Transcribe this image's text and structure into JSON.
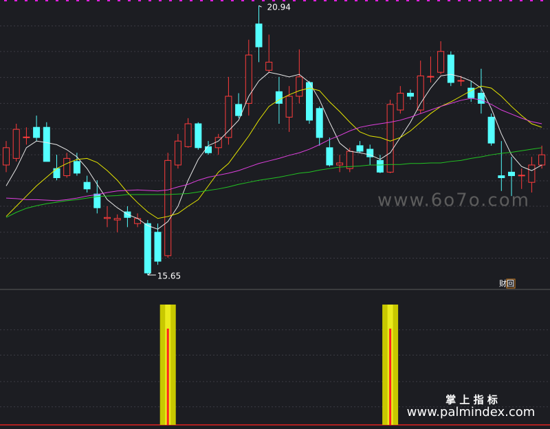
{
  "chart_data": {
    "type": "candlestick",
    "open": [
      17.81,
      17.94,
      18.35,
      18.55,
      18.55,
      17.74,
      17.6,
      17.88,
      17.47,
      17.24,
      16.76,
      16.73,
      16.89,
      16.66,
      16.66,
      16.49,
      16.03,
      17.81,
      18.17,
      18.62,
      18.17,
      18.15,
      18.35,
      19.0,
      19.02,
      20.58,
      19.67,
      19.25,
      18.75,
      19.16,
      19.43,
      18.92,
      18.15,
      17.81,
      17.74,
      18.19,
      18.12,
      17.9,
      17.67,
      18.89,
      19.22,
      18.89,
      19.54,
      19.63,
      19.97,
      19.46,
      19.32,
      19.22,
      18.75,
      17.6,
      17.67,
      17.6,
      17.47,
      17.81
    ],
    "high": [
      18.28,
      18.62,
      18.55,
      18.78,
      18.65,
      18.01,
      18.05,
      18.05,
      17.6,
      17.51,
      17.0,
      16.84,
      17.0,
      16.86,
      16.73,
      16.66,
      18.05,
      18.42,
      18.73,
      18.65,
      18.28,
      18.42,
      19.54,
      19.22,
      20.27,
      20.94,
      20.37,
      19.54,
      19.36,
      20.08,
      19.46,
      18.96,
      18.35,
      18.01,
      18.15,
      18.28,
      18.21,
      18.01,
      19.09,
      19.36,
      19.29,
      19.86,
      19.94,
      20.24,
      20.04,
      19.56,
      19.46,
      19.7,
      18.82,
      18.28,
      17.97,
      17.74,
      17.97,
      18.19
    ],
    "low": [
      17.67,
      17.88,
      18.21,
      18.28,
      17.88,
      17.51,
      17.56,
      17.6,
      17.27,
      16.86,
      16.59,
      16.49,
      16.59,
      16.59,
      15.65,
      15.85,
      15.99,
      17.74,
      18.15,
      18.11,
      18.01,
      18.01,
      18.21,
      18.73,
      18.78,
      19.83,
      19.63,
      18.62,
      18.46,
      19.02,
      18.62,
      18.19,
      17.78,
      17.67,
      17.67,
      18.05,
      17.81,
      17.65,
      17.65,
      18.82,
      19.09,
      18.82,
      19.43,
      19.59,
      19.36,
      19.36,
      19.05,
      18.82,
      18.19,
      17.3,
      17.2,
      17.34,
      17.27,
      17.74
    ],
    "close": [
      18.15,
      18.51,
      18.36,
      18.35,
      17.88,
      17.56,
      17.94,
      17.65,
      17.34,
      16.97,
      16.78,
      16.76,
      16.78,
      16.76,
      15.69,
      15.92,
      17.9,
      18.28,
      18.62,
      18.15,
      18.05,
      18.35,
      19.16,
      18.78,
      19.97,
      20.13,
      19.83,
      19.02,
      19.16,
      19.54,
      18.69,
      18.35,
      17.81,
      17.85,
      18.08,
      18.08,
      17.97,
      17.67,
      19.0,
      19.22,
      19.16,
      19.56,
      19.55,
      20.04,
      19.43,
      19.47,
      19.13,
      19.02,
      18.24,
      17.56,
      17.6,
      17.61,
      17.81,
      18.01
    ],
    "up_color": "#ff3c3c",
    "down_color": "#54ffff",
    "lines": [
      {
        "color": "#e8e8e8",
        "values": [
          17.4,
          17.74,
          18.15,
          18.28,
          18.25,
          18.21,
          18.11,
          17.97,
          17.74,
          17.43,
          17.13,
          16.97,
          16.84,
          16.76,
          16.62,
          16.55,
          16.7,
          17.0,
          17.51,
          17.92,
          18.19,
          18.28,
          18.48,
          18.69,
          19.16,
          19.46,
          19.63,
          19.59,
          19.54,
          19.59,
          19.43,
          19.09,
          18.65,
          18.24,
          18.08,
          18.05,
          18.01,
          17.92,
          18.05,
          18.35,
          18.65,
          19.02,
          19.32,
          19.56,
          19.59,
          19.54,
          19.46,
          19.32,
          18.92,
          18.42,
          18.01,
          17.78,
          17.7,
          17.81
        ]
      },
      {
        "color": "#e6e600",
        "values": [
          16.8,
          17.0,
          17.2,
          17.4,
          17.57,
          17.74,
          17.84,
          17.92,
          17.94,
          17.86,
          17.7,
          17.51,
          17.27,
          17.07,
          16.89,
          16.76,
          16.8,
          16.86,
          17.0,
          17.13,
          17.4,
          17.67,
          17.84,
          18.11,
          18.38,
          18.69,
          18.96,
          19.09,
          19.19,
          19.27,
          19.32,
          19.27,
          19.05,
          18.86,
          18.65,
          18.46,
          18.38,
          18.35,
          18.28,
          18.35,
          18.48,
          18.65,
          18.82,
          18.96,
          19.05,
          19.16,
          19.27,
          19.36,
          19.32,
          19.16,
          18.96,
          18.78,
          18.62,
          18.55
        ]
      },
      {
        "color": "#e040e0",
        "values": [
          17.16,
          17.15,
          17.13,
          17.13,
          17.12,
          17.11,
          17.13,
          17.16,
          17.2,
          17.23,
          17.27,
          17.3,
          17.31,
          17.32,
          17.31,
          17.3,
          17.32,
          17.38,
          17.43,
          17.51,
          17.57,
          17.61,
          17.65,
          17.7,
          17.77,
          17.84,
          17.89,
          17.94,
          18.0,
          18.05,
          18.12,
          18.21,
          18.31,
          18.39,
          18.48,
          18.55,
          18.59,
          18.62,
          18.65,
          18.69,
          18.75,
          18.82,
          18.89,
          18.96,
          19.02,
          19.08,
          19.12,
          19.09,
          19.0,
          18.89,
          18.81,
          18.73,
          18.66,
          18.62
        ]
      },
      {
        "color": "#22c422",
        "values": [
          16.78,
          16.88,
          16.96,
          17.01,
          17.05,
          17.08,
          17.11,
          17.13,
          17.16,
          17.19,
          17.2,
          17.21,
          17.23,
          17.23,
          17.23,
          17.23,
          17.23,
          17.24,
          17.25,
          17.28,
          17.31,
          17.34,
          17.38,
          17.43,
          17.47,
          17.51,
          17.54,
          17.57,
          17.61,
          17.65,
          17.67,
          17.71,
          17.74,
          17.77,
          17.78,
          17.79,
          17.81,
          17.81,
          17.82,
          17.82,
          17.84,
          17.84,
          17.85,
          17.85,
          17.88,
          17.9,
          17.94,
          17.97,
          18.01,
          18.04,
          18.06,
          18.09,
          18.12,
          18.15
        ]
      }
    ],
    "ylim": [
      15.38,
      21.05
    ],
    "yticks": [
      20.54,
      20.04,
      19.53,
      19.02,
      18.52,
      18.01,
      17.5,
      17.0,
      16.49,
      15.98
    ],
    "high_mark": 20.94,
    "low_mark": 15.65,
    "badge": "财回",
    "watermark": "www.6o7o.com",
    "indicator": {
      "bar_color": "#c8c800",
      "line_color": "#ff2020",
      "bars": [
        0,
        0,
        0,
        0,
        0,
        0,
        0,
        0,
        0,
        0,
        0,
        0,
        0,
        0,
        0,
        0,
        1,
        0,
        0,
        0,
        0,
        0,
        0,
        0,
        0,
        0,
        0,
        0,
        0,
        0,
        0,
        0,
        0,
        0,
        0,
        0,
        0,
        0,
        1,
        0,
        0,
        0,
        0,
        0,
        0,
        0,
        0,
        0,
        0,
        0,
        0,
        0,
        0,
        0
      ],
      "line": [
        0,
        0,
        0,
        0,
        0,
        0,
        0,
        0,
        0,
        0,
        0,
        0,
        0,
        0,
        0,
        0,
        0.8,
        0,
        0,
        0,
        0,
        0,
        0,
        0,
        0,
        0,
        0,
        0,
        0,
        0,
        0,
        0,
        0,
        0,
        0,
        0,
        0,
        0,
        0.8,
        0,
        0,
        0,
        0,
        0,
        0,
        0,
        0,
        0,
        0,
        0,
        0,
        0,
        0,
        0
      ],
      "ylim": [
        0,
        1
      ],
      "yticks": [
        0.15,
        0.36,
        0.58,
        0.79
      ]
    },
    "brand_title": "掌 上 指 标",
    "brand_url": "www.palmindex.com"
  }
}
